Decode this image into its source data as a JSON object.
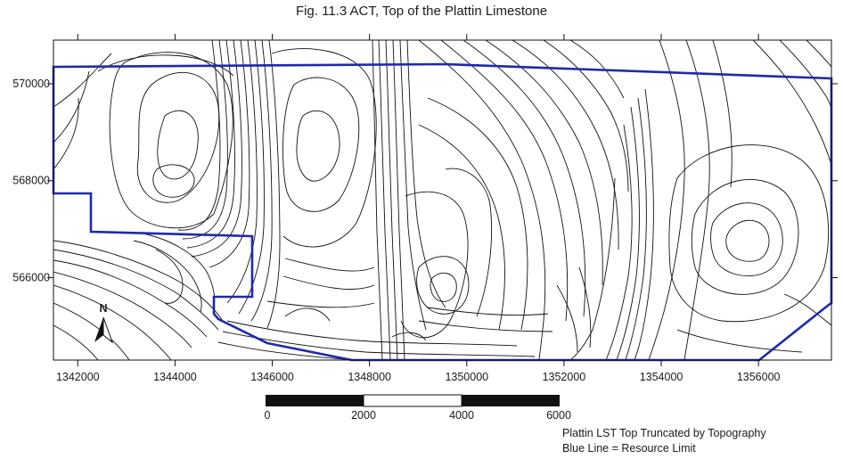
{
  "title": "Fig. 11.3 ACT, Top of the Plattin Limestone",
  "map": {
    "x_ticks": [
      "1342000",
      "1344000",
      "1346000",
      "1348000",
      "1350000",
      "1352000",
      "1354000",
      "1356000"
    ],
    "y_ticks": [
      "570000",
      "568000",
      "566000"
    ],
    "x_range": [
      1341500,
      1357500
    ],
    "y_range": [
      564300,
      570900
    ],
    "boundary_color": "#1f2aa8",
    "contour_color": "#111111"
  },
  "north_arrow": {
    "label": "N"
  },
  "scale_bar": {
    "labels": [
      "0",
      "2000",
      "4000",
      "6000"
    ]
  },
  "legend": {
    "line1": "Plattin LST Top Truncated by Topography",
    "line2": "Blue Line = Resource Limit"
  }
}
